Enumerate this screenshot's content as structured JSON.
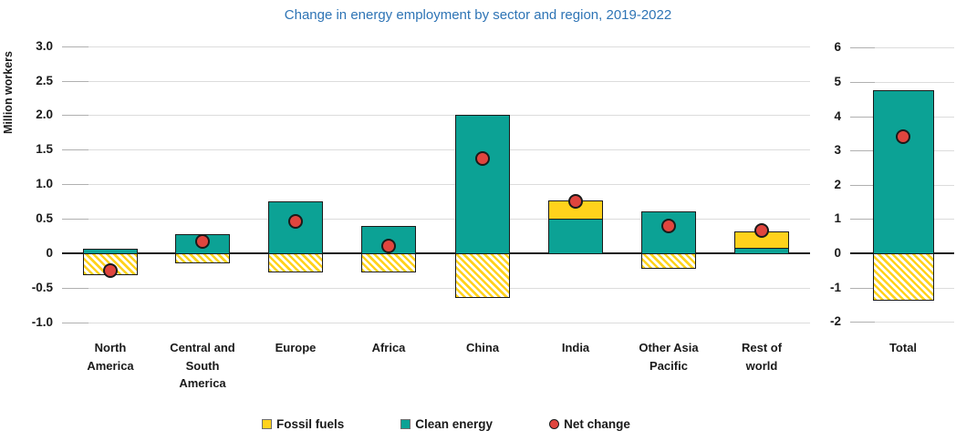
{
  "title": {
    "text": "Change in energy employment by sector and region, 2019-2022"
  },
  "y_axis": {
    "label": "Million workers",
    "ticks": [
      "3.0",
      "2.5",
      "2.0",
      "1.5",
      "1.0",
      "0.5",
      "0",
      "-0.5",
      "-1.0"
    ]
  },
  "total_axis": {
    "ticks": [
      "6",
      "5",
      "4",
      "3",
      "2",
      "1",
      "0",
      "-1",
      "-2"
    ]
  },
  "legend": {
    "items": [
      {
        "label": "Fossil fuels",
        "marker": "square",
        "color": "#FFD21C"
      },
      {
        "label": "Clean energy",
        "marker": "square",
        "color": "#0CA295"
      },
      {
        "label": "Net change",
        "marker": "circle",
        "color": "#E0453E"
      }
    ]
  },
  "colors": {
    "clean_energy": "#0CA295",
    "fossil_fuels": "#FFD21C",
    "net_change": "#E0453E",
    "title": "#2E74B5",
    "gridline": "#DCDCDC",
    "axis_and_text": "#1A1A1A"
  },
  "chart_data": {
    "type": "bar",
    "title": "Change in energy employment by sector and region, 2019-2022",
    "ylabel": "Million workers",
    "unit": "million workers",
    "grid": true,
    "legend_position": "bottom",
    "notes": "Stacked bars (clean energy teal, fossil fuels yellow; negative fossil values drawn hatched below zero) with net-change dot markers. Two panels: regions and total, different y scales.",
    "panels": [
      {
        "name": "regions",
        "ylim": [
          -1.0,
          3.0
        ],
        "ytick_step": 0.5,
        "categories": [
          "North America",
          "Central and South America",
          "Europe",
          "Africa",
          "China",
          "India",
          "Other Asia Pacific",
          "Rest of world"
        ],
        "category_lines": [
          [
            "North",
            "America"
          ],
          [
            "Central and",
            "South",
            "America"
          ],
          [
            "Europe"
          ],
          [
            "Africa"
          ],
          [
            "China"
          ],
          [
            "India"
          ],
          [
            "Other Asia",
            "Pacific"
          ],
          [
            "Rest of",
            "world"
          ]
        ],
        "series": [
          {
            "name": "Fossil fuels",
            "values": [
              -0.32,
              -0.14,
              -0.28,
              -0.28,
              -0.65,
              0.26,
              -0.23,
              0.24
            ]
          },
          {
            "name": "Clean energy",
            "values": [
              0.07,
              0.28,
              0.75,
              0.39,
              2.0,
              0.5,
              0.61,
              0.08
            ]
          },
          {
            "name": "Net change",
            "values": [
              -0.25,
              0.17,
              0.46,
              0.11,
              1.37,
              0.75,
              0.4,
              0.33
            ]
          }
        ]
      },
      {
        "name": "total",
        "ylim": [
          -2,
          6
        ],
        "ytick_step": 1,
        "categories": [
          "Total"
        ],
        "category_lines": [
          [
            "Total"
          ]
        ],
        "series": [
          {
            "name": "Fossil fuels",
            "values": [
              -1.38
            ]
          },
          {
            "name": "Clean energy",
            "values": [
              4.75
            ]
          },
          {
            "name": "Net change",
            "values": [
              3.4
            ]
          }
        ]
      }
    ]
  }
}
